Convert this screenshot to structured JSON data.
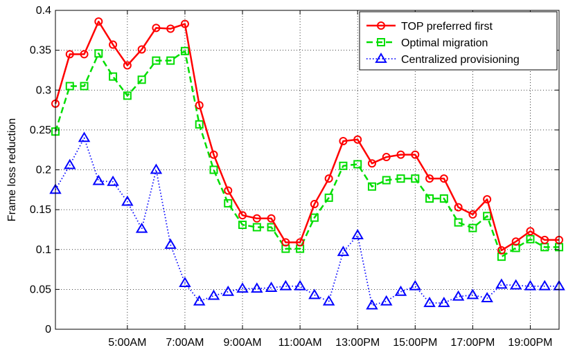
{
  "chart_data": {
    "type": "line",
    "title": "",
    "xlabel": "",
    "ylabel": "Frame loss reduction",
    "ylim": [
      0,
      0.4
    ],
    "yticks": [
      "0",
      "0.05",
      "0.1",
      "0.15",
      "0.2",
      "0.25",
      "0.3",
      "0.35",
      "0.4"
    ],
    "xlim": [
      2.5,
      20
    ],
    "xticks": [
      {
        "x": 5,
        "label": "5:00AM"
      },
      {
        "x": 7,
        "label": "7:00AM"
      },
      {
        "x": 9,
        "label": "9:00AM"
      },
      {
        "x": 11,
        "label": "11:00AM"
      },
      {
        "x": 13,
        "label": "13:00PM"
      },
      {
        "x": 15,
        "label": "15:00PM"
      },
      {
        "x": 17,
        "label": "17:00PM"
      },
      {
        "x": 19,
        "label": "19:00PM"
      }
    ],
    "grid": true,
    "legend_position": "top-right",
    "x": [
      2.5,
      3.0,
      3.5,
      4.0,
      4.5,
      5.0,
      5.5,
      6.0,
      6.5,
      7.0,
      7.5,
      8.0,
      8.5,
      9.0,
      9.5,
      10.0,
      10.5,
      11.0,
      11.5,
      12.0,
      12.5,
      13.0,
      13.5,
      14.0,
      14.5,
      15.0,
      15.5,
      16.0,
      16.5,
      17.0,
      17.5,
      18.0,
      18.5,
      19.0,
      19.5,
      20.0
    ],
    "series": [
      {
        "name": "TOP preferred first",
        "color": "#ff0000",
        "marker": "circle",
        "line_style": "solid",
        "values": [
          0.283,
          0.345,
          0.345,
          0.386,
          0.357,
          0.331,
          0.351,
          0.378,
          0.377,
          0.383,
          0.281,
          0.219,
          0.174,
          0.143,
          0.139,
          0.139,
          0.109,
          0.109,
          0.157,
          0.189,
          0.236,
          0.238,
          0.208,
          0.216,
          0.219,
          0.219,
          0.189,
          0.189,
          0.153,
          0.144,
          0.163,
          0.099,
          0.11,
          0.123,
          0.112,
          0.112
        ]
      },
      {
        "name": "Optimal migration",
        "color": "#00dd00",
        "marker": "square",
        "line_style": "dashed",
        "values": [
          0.248,
          0.305,
          0.305,
          0.346,
          0.317,
          0.293,
          0.313,
          0.337,
          0.337,
          0.349,
          0.257,
          0.2,
          0.158,
          0.131,
          0.128,
          0.128,
          0.101,
          0.101,
          0.14,
          0.165,
          0.205,
          0.207,
          0.179,
          0.187,
          0.189,
          0.189,
          0.164,
          0.164,
          0.134,
          0.127,
          0.142,
          0.091,
          0.102,
          0.113,
          0.103,
          0.103
        ]
      },
      {
        "name": "Centralized provisioning",
        "color": "#0000ff",
        "marker": "triangle",
        "line_style": "dotted",
        "values": [
          0.175,
          0.206,
          0.24,
          0.186,
          0.185,
          0.16,
          0.126,
          0.2,
          0.106,
          0.058,
          0.035,
          0.042,
          0.047,
          0.051,
          0.051,
          0.052,
          0.054,
          0.054,
          0.043,
          0.035,
          0.097,
          0.118,
          0.03,
          0.035,
          0.047,
          0.054,
          0.033,
          0.033,
          0.041,
          0.043,
          0.039,
          0.056,
          0.055,
          0.054,
          0.054,
          0.054
        ]
      }
    ]
  }
}
